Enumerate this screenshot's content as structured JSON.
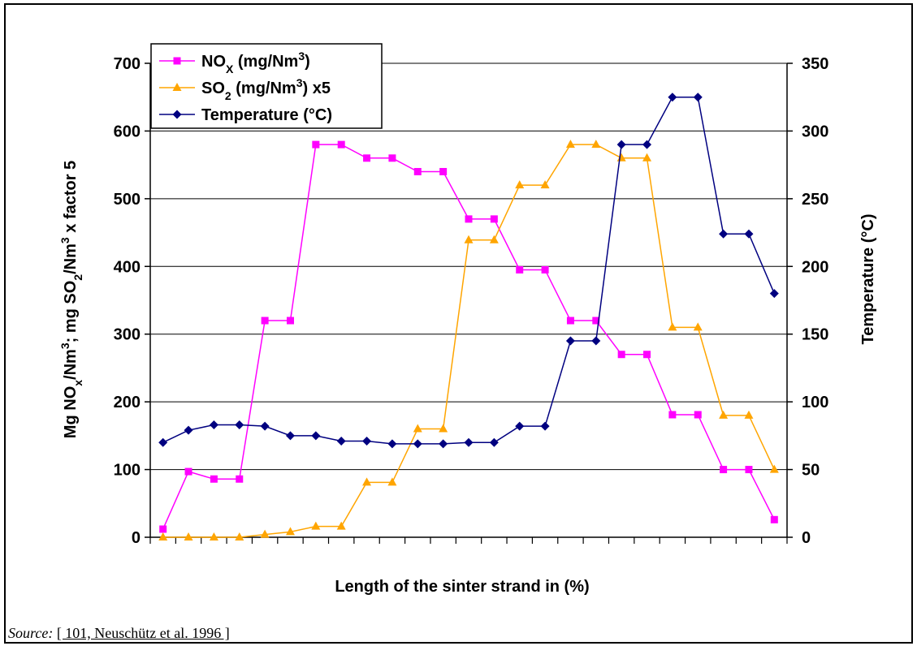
{
  "chart_data": {
    "type": "line",
    "xlabel": "Length of the sinter strand in (%)",
    "ylabel_left": {
      "pre": "Mg NO",
      "sub1": "x",
      "mid1": "/Nm",
      "sup1": "3",
      "mid2": "; mg SO",
      "sub2": "2",
      "mid3": "/Nm",
      "sup2": "3",
      "post": " x factor 5"
    },
    "ylabel_right": "Temperature (°C)",
    "ylim_left": [
      0,
      700
    ],
    "ylim_right": [
      0,
      350
    ],
    "yticks_left": [
      "0",
      "100",
      "200",
      "300",
      "400",
      "500",
      "600",
      "700"
    ],
    "yticks_right": [
      "0",
      "50",
      "100",
      "150",
      "200",
      "250",
      "300",
      "350"
    ],
    "grid": true,
    "legend_position": "top-left",
    "x_points": 25,
    "series": [
      {
        "name": "NOX (mg/Nm3)",
        "label": {
          "pre": "NO",
          "sub": "X",
          "mid": " (mg/Nm",
          "sup": "3",
          "post": ")"
        },
        "axis": "left",
        "color": "#ff00ff",
        "marker": "square",
        "values": [
          12,
          97,
          86,
          86,
          320,
          320,
          580,
          580,
          560,
          560,
          540,
          540,
          470,
          470,
          395,
          395,
          320,
          320,
          270,
          270,
          181,
          181,
          100,
          100,
          26
        ]
      },
      {
        "name": "SO2 (mg/Nm3) x5",
        "label": {
          "pre": "SO",
          "sub": "2",
          "mid": " (mg/Nm",
          "sup": "3",
          "post": ") x5"
        },
        "axis": "left",
        "color": "#ffa500",
        "marker": "triangle",
        "values": [
          0,
          0,
          0,
          0,
          4,
          8,
          16,
          16,
          81,
          81,
          160,
          160,
          439,
          439,
          520,
          520,
          580,
          580,
          560,
          560,
          310,
          310,
          180,
          180,
          100
        ]
      },
      {
        "name": "Temperature (°C)",
        "label": {
          "pre": "Temperature (°C)",
          "sub": "",
          "mid": "",
          "sup": "",
          "post": ""
        },
        "axis": "right",
        "color": "#000080",
        "marker": "diamond",
        "values": [
          70,
          79,
          83,
          83,
          82,
          75,
          75,
          71,
          71,
          69,
          69,
          69,
          70,
          70,
          82,
          82,
          145,
          145,
          290,
          290,
          325,
          325,
          224,
          224,
          180
        ]
      }
    ]
  },
  "source": {
    "label": "Source:",
    "reference": "[ 101, Neuschütz et al. 1996 ]"
  }
}
